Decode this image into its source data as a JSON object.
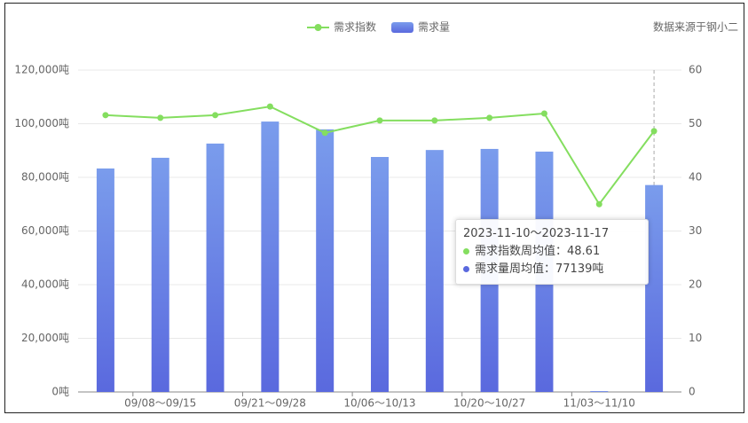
{
  "chart_data": {
    "type": "bar-line",
    "source": "数据来源于钢小二",
    "categories": [
      null,
      "09/08～09/15",
      null,
      "09/21～09/28",
      null,
      "10/06～10/13",
      null,
      "10/20～10/27",
      null,
      "11/03～11/10",
      null
    ],
    "series": [
      {
        "name": "需求量",
        "type": "bar",
        "color": "#7a9cec",
        "values": [
          83300,
          87300,
          92600,
          100800,
          97900,
          87600,
          90200,
          90600,
          89600,
          300,
          77139
        ]
      },
      {
        "name": "需求指数",
        "type": "line",
        "axis": "y2",
        "color": "#84de5f",
        "values": [
          51.6,
          51.1,
          51.6,
          53.2,
          48.3,
          50.6,
          50.6,
          51.1,
          51.9,
          35.0,
          48.61
        ]
      }
    ],
    "ylim": [
      0,
      120000
    ],
    "yticks": [
      {
        "value": 0,
        "label": "0吨"
      },
      {
        "value": 20000,
        "label": "20,000吨"
      },
      {
        "value": 40000,
        "label": "40,000吨"
      },
      {
        "value": 60000,
        "label": "60,000吨"
      },
      {
        "value": 80000,
        "label": "80,000吨"
      },
      {
        "value": 100000,
        "label": "100,000吨"
      },
      {
        "value": 120000,
        "label": "120,000吨"
      }
    ],
    "y2lim": [
      0,
      60
    ],
    "y2ticks": [
      0,
      10,
      20,
      30,
      40,
      50,
      60
    ],
    "grid": true,
    "tooltip": {
      "title": "2023-11-10～2023-11-17",
      "lines": [
        "需求指数周均值：48.61",
        "需求量周均值：77139吨"
      ]
    }
  }
}
